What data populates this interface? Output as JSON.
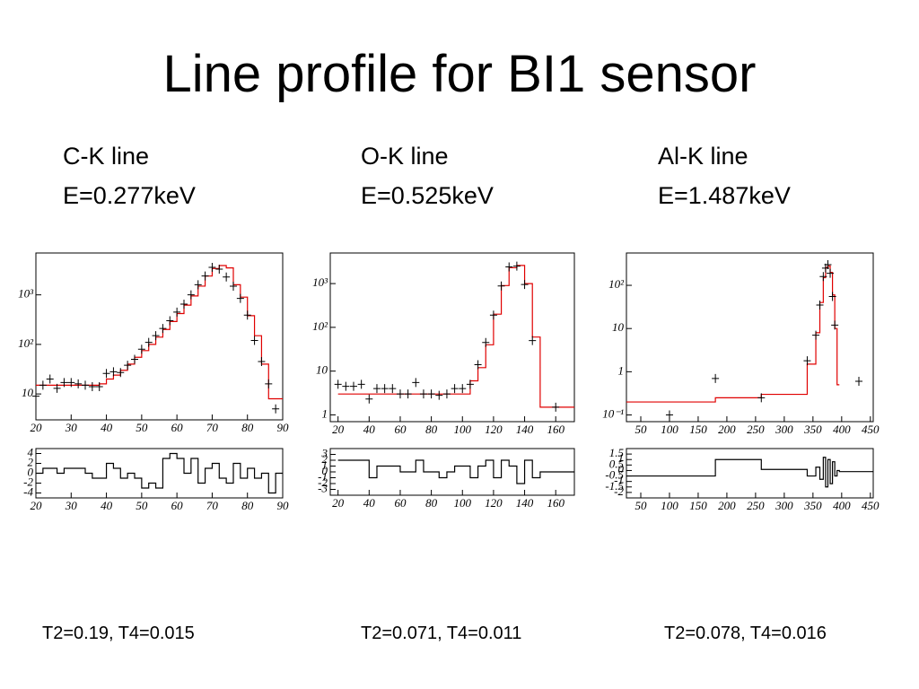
{
  "title": "Line profile for BI1 sensor",
  "panels": [
    {
      "line": "C-K line",
      "energy": "E=0.277keV",
      "stats": "T2=0.19, T4=0.015"
    },
    {
      "line": "O-K line",
      "energy": "E=0.525keV",
      "stats": "T2=0.071, T4=0.011"
    },
    {
      "line": "Al-K line",
      "energy": "E=1.487keV",
      "stats": "T2=0.078, T4=0.016"
    }
  ],
  "chart_data": [
    {
      "type": "line",
      "log_y": true,
      "x": [
        20,
        22,
        24,
        26,
        28,
        30,
        32,
        34,
        36,
        38,
        40,
        42,
        44,
        46,
        48,
        50,
        52,
        54,
        56,
        58,
        60,
        62,
        64,
        66,
        68,
        70,
        72,
        74,
        76,
        78,
        80,
        82,
        84,
        86,
        88,
        90
      ],
      "series": [
        {
          "style": "step",
          "color": "#e00000",
          "values": [
            15,
            15,
            15,
            15,
            15,
            15,
            15,
            15,
            15,
            16,
            20,
            24,
            30,
            40,
            55,
            75,
            100,
            140,
            200,
            290,
            420,
            620,
            950,
            1500,
            2400,
            3400,
            3900,
            3500,
            1600,
            900,
            380,
            150,
            40,
            8,
            8,
            8
          ]
        },
        {
          "style": "points",
          "color": "#000000",
          "values": [
            9,
            15,
            20,
            13,
            17,
            17,
            16,
            15,
            14,
            14,
            26,
            28,
            27,
            38,
            50,
            80,
            110,
            150,
            210,
            300,
            450,
            650,
            1000,
            1600,
            2400,
            3600,
            3300,
            2300,
            1500,
            850,
            390,
            120,
            45,
            16,
            5,
            null
          ]
        }
      ],
      "xlim": [
        20,
        90
      ],
      "xticks": [
        20,
        30,
        40,
        50,
        60,
        70,
        80,
        90
      ],
      "ylim": [
        3,
        7000
      ],
      "yticks": [
        10,
        {
          "value": 100,
          "label": "10²"
        },
        {
          "value": 1000,
          "label": "10³"
        }
      ]
    },
    {
      "type": "line",
      "x": [
        20,
        22,
        24,
        26,
        28,
        30,
        32,
        34,
        36,
        38,
        40,
        42,
        44,
        46,
        48,
        50,
        52,
        54,
        56,
        58,
        60,
        62,
        64,
        66,
        68,
        70,
        72,
        74,
        76,
        78,
        80,
        82,
        84,
        86,
        88,
        90
      ],
      "series": [
        {
          "style": "step",
          "color": "#000000",
          "values": [
            0,
            1,
            1,
            0,
            1,
            1,
            1,
            0,
            -1,
            -1,
            2,
            1,
            -1,
            0,
            -1,
            -3,
            -2,
            -3,
            3,
            4,
            3,
            0,
            3,
            -2,
            1,
            2,
            -1,
            -2,
            2,
            -1,
            1,
            -1,
            0,
            -4,
            0,
            0
          ]
        }
      ],
      "xlim": [
        20,
        90
      ],
      "xticks": [
        20,
        30,
        40,
        50,
        60,
        70,
        80,
        90
      ],
      "ylim": [
        -5,
        5
      ],
      "yticks": [
        -4,
        -2,
        0,
        2,
        4
      ]
    },
    {
      "type": "line",
      "log_y": true,
      "x": [
        20,
        25,
        30,
        35,
        40,
        45,
        50,
        55,
        60,
        65,
        70,
        75,
        80,
        85,
        90,
        95,
        100,
        105,
        110,
        115,
        120,
        125,
        130,
        135,
        140,
        145,
        150,
        155,
        160,
        165,
        170
      ],
      "series": [
        {
          "style": "step",
          "color": "#e00000",
          "values": [
            3,
            3,
            3,
            3,
            3,
            3,
            3,
            3,
            3,
            3,
            3,
            3,
            3,
            3,
            3,
            3,
            3,
            6,
            12,
            40,
            200,
            900,
            2300,
            2600,
            1000,
            60,
            1.5,
            1.5,
            1.5,
            1.5,
            1.5
          ]
        },
        {
          "style": "points",
          "color": "#000000",
          "values": [
            5,
            4.5,
            4.5,
            5,
            2.3,
            4,
            4,
            4,
            3,
            3,
            5.5,
            3,
            3,
            2.8,
            3,
            4,
            4,
            5,
            14,
            45,
            190,
            880,
            2400,
            2500,
            950,
            50,
            null,
            null,
            1.5,
            null,
            null
          ]
        }
      ],
      "xlim": [
        15,
        172
      ],
      "xticks": [
        20,
        40,
        60,
        80,
        100,
        120,
        140,
        160
      ],
      "ylim": [
        0.7,
        5000
      ],
      "yticks": [
        1,
        10,
        {
          "value": 100,
          "label": "10²"
        },
        {
          "value": 1000,
          "label": "10³"
        }
      ]
    },
    {
      "type": "line",
      "x": [
        20,
        25,
        30,
        35,
        40,
        45,
        50,
        55,
        60,
        65,
        70,
        75,
        80,
        85,
        90,
        95,
        100,
        105,
        110,
        115,
        120,
        125,
        130,
        135,
        140,
        145,
        150,
        155,
        160,
        165,
        170
      ],
      "series": [
        {
          "style": "step",
          "color": "#000000",
          "values": [
            2,
            2,
            2,
            2,
            -1,
            1,
            1,
            1,
            0,
            0,
            2,
            0,
            0,
            -1,
            0,
            1,
            1,
            -1,
            1,
            2,
            -1,
            2,
            1,
            -2,
            2,
            -1,
            0,
            0,
            0,
            0,
            0
          ]
        }
      ],
      "xlim": [
        15,
        172
      ],
      "xticks": [
        20,
        40,
        60,
        80,
        100,
        120,
        140,
        160
      ],
      "ylim": [
        -4,
        4
      ],
      "yticks": [
        -3,
        -2,
        -1,
        0,
        1,
        2,
        3
      ]
    },
    {
      "type": "line",
      "log_y": true,
      "x": [
        25,
        100,
        180,
        260,
        340,
        355,
        362,
        368,
        372,
        376,
        380,
        384,
        388,
        392,
        396,
        430
      ],
      "series": [
        {
          "style": "step",
          "color": "#e00000",
          "values": [
            0.2,
            0.2,
            0.25,
            0.3,
            1.5,
            8,
            40,
            150,
            260,
            280,
            200,
            60,
            10,
            0.5,
            null,
            null
          ]
        },
        {
          "style": "points",
          "color": "#000000",
          "values": [
            null,
            0.1,
            0.7,
            0.25,
            1.8,
            7,
            35,
            160,
            250,
            300,
            190,
            55,
            12,
            null,
            null,
            0.6
          ]
        }
      ],
      "xlim": [
        25,
        455
      ],
      "xticks": [
        50,
        100,
        150,
        200,
        250,
        300,
        350,
        400,
        450
      ],
      "ylim": [
        0.07,
        560
      ],
      "yticks": [
        {
          "value": 0.1,
          "label": "10⁻¹"
        },
        1,
        10,
        {
          "value": 100,
          "label": "10²"
        }
      ]
    },
    {
      "type": "line",
      "x": [
        25,
        100,
        180,
        260,
        340,
        355,
        362,
        368,
        372,
        376,
        380,
        384,
        388,
        392,
        396,
        430
      ],
      "series": [
        {
          "style": "step",
          "color": "#000000",
          "values": [
            -0.5,
            -0.5,
            1.0,
            0.1,
            -0.5,
            0.3,
            -0.8,
            1.2,
            -1.5,
            1.0,
            -1.2,
            0.8,
            -0.5,
            0,
            -0.1,
            -0.1
          ]
        }
      ],
      "xlim": [
        25,
        455
      ],
      "xticks": [
        50,
        100,
        150,
        200,
        250,
        300,
        350,
        400,
        450
      ],
      "ylim": [
        -2.5,
        2
      ],
      "yticks": [
        -2,
        -1.5,
        -1,
        -0.5,
        0,
        0.5,
        1,
        1.5
      ]
    }
  ]
}
